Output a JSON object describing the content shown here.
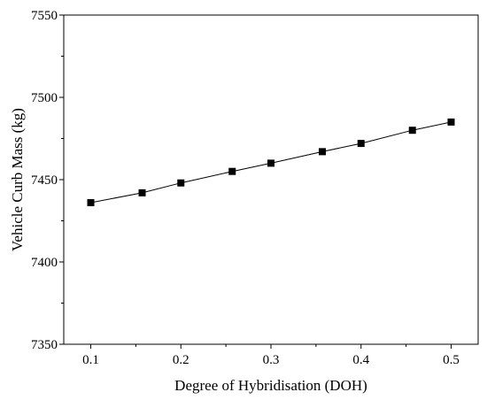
{
  "chart_data": {
    "type": "line",
    "title": "",
    "xlabel": "Degree of Hybridisation (DOH)",
    "ylabel": "Vehicle Curb Mass (kg)",
    "xlim": [
      0.07,
      0.53
    ],
    "ylim": [
      7350,
      7550
    ],
    "xticks": [
      0.1,
      0.2,
      0.3,
      0.4,
      0.5
    ],
    "yticks": [
      7350,
      7400,
      7450,
      7500,
      7550
    ],
    "xtick_labels": [
      "0.1",
      "0.2",
      "0.3",
      "0.4",
      "0.5"
    ],
    "ytick_labels": [
      "7350",
      "7400",
      "7450",
      "7500",
      "7550"
    ],
    "grid": false,
    "legend": "none",
    "series": [
      {
        "marker": "square",
        "color": "#000000",
        "x": [
          0.1,
          0.157,
          0.2,
          0.257,
          0.3,
          0.357,
          0.4,
          0.457,
          0.5
        ],
        "y": [
          7436,
          7442,
          7448,
          7455,
          7460,
          7467,
          7472,
          7480,
          7485
        ]
      }
    ]
  }
}
